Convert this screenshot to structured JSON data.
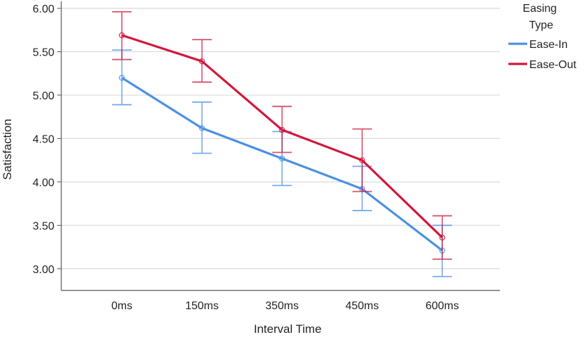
{
  "chart_data": {
    "type": "line",
    "categories": [
      "0ms",
      "150ms",
      "350ms",
      "450ms",
      "600ms"
    ],
    "xlabel": "Interval Time",
    "ylabel": "Satisfaction",
    "ylim": [
      2.75,
      6.0
    ],
    "yticks": [
      "3.00",
      "3.50",
      "4.00",
      "4.50",
      "5.00",
      "5.50",
      "6.00"
    ],
    "grid": true,
    "legend": {
      "title_line1": "Easing",
      "title_line2": "Type",
      "position": "top-right"
    },
    "series": [
      {
        "name": "Ease-In",
        "color": "#4a90e2",
        "values": [
          5.2,
          4.62,
          4.27,
          3.92,
          3.21
        ],
        "err_low": [
          4.89,
          4.33,
          3.96,
          3.67,
          2.91
        ],
        "err_high": [
          5.52,
          4.92,
          4.58,
          4.18,
          3.5
        ]
      },
      {
        "name": "Ease-Out",
        "color": "#d1173c",
        "values": [
          5.69,
          5.39,
          4.6,
          4.25,
          3.36
        ],
        "err_low": [
          5.41,
          5.15,
          4.34,
          3.89,
          3.11
        ],
        "err_high": [
          5.96,
          5.64,
          4.87,
          4.61,
          3.61
        ]
      }
    ]
  }
}
